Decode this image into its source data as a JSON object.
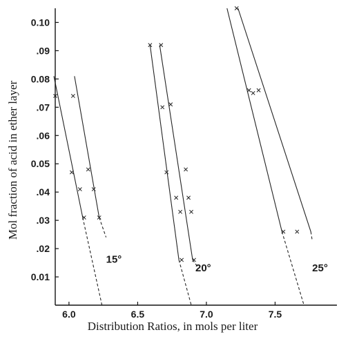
{
  "chart_data": {
    "type": "line",
    "title": "",
    "xlabel": "Distribution Ratios, in mols per liter",
    "ylabel": "Mol fraction of acid in ether layer",
    "xlim": [
      5.9,
      7.95
    ],
    "ylim": [
      0.0,
      0.105
    ],
    "x_ticks": [
      {
        "value": 6.0,
        "label": "6.0"
      },
      {
        "value": 6.5,
        "label": "6.5"
      },
      {
        "value": 7.0,
        "label": "7.0"
      },
      {
        "value": 7.5,
        "label": "7.5"
      }
    ],
    "y_ticks": [
      {
        "value": 0.01,
        "label": "0.01"
      },
      {
        "value": 0.02,
        "label": ".02"
      },
      {
        "value": 0.03,
        "label": ".03"
      },
      {
        "value": 0.04,
        "label": ".04"
      },
      {
        "value": 0.05,
        "label": "0.05"
      },
      {
        "value": 0.06,
        "label": ".06"
      },
      {
        "value": 0.07,
        "label": ".07"
      },
      {
        "value": 0.08,
        "label": "0.08"
      },
      {
        "value": 0.09,
        "label": ".09"
      },
      {
        "value": 0.1,
        "label": "0.10"
      }
    ],
    "grid": false,
    "legend": "none",
    "groups": [
      {
        "label": "15°",
        "label_at": [
          6.27,
          0.015
        ],
        "lines": [
          {
            "solid": [
              [
                5.89,
                0.081
              ],
              [
                6.1,
                0.031
              ]
            ],
            "dashed_to": [
              6.24,
              0.0
            ]
          },
          {
            "solid": [
              [
                6.04,
                0.081
              ],
              [
                6.22,
                0.031
              ]
            ],
            "dashed_to": [
              6.27,
              0.024
            ]
          }
        ],
        "points": [
          [
            5.9,
            0.074
          ],
          [
            6.02,
            0.047
          ],
          [
            6.08,
            0.041
          ],
          [
            6.11,
            0.031
          ],
          [
            6.03,
            0.074
          ],
          [
            6.14,
            0.048
          ],
          [
            6.18,
            0.041
          ],
          [
            6.22,
            0.031
          ]
        ]
      },
      {
        "label": "20°",
        "label_at": [
          6.92,
          0.012
        ],
        "lines": [
          {
            "solid": [
              [
                6.59,
                0.092
              ],
              [
                6.8,
                0.016
              ]
            ],
            "dashed_to": [
              6.89,
              0.0
            ]
          },
          {
            "solid": [
              [
                6.66,
                0.092
              ],
              [
                6.9,
                0.016
              ]
            ],
            "dashed_to": [
              6.93,
              0.014
            ]
          }
        ],
        "points": [
          [
            6.59,
            0.092
          ],
          [
            6.68,
            0.07
          ],
          [
            6.71,
            0.047
          ],
          [
            6.78,
            0.038
          ],
          [
            6.81,
            0.033
          ],
          [
            6.82,
            0.016
          ],
          [
            6.67,
            0.092
          ],
          [
            6.74,
            0.071
          ],
          [
            6.85,
            0.048
          ],
          [
            6.87,
            0.038
          ],
          [
            6.89,
            0.033
          ],
          [
            6.91,
            0.016
          ]
        ]
      },
      {
        "label": "25°",
        "label_at": [
          7.77,
          0.012
        ],
        "lines": [
          {
            "solid": [
              [
                7.15,
                0.105
              ],
              [
                7.55,
                0.026
              ]
            ],
            "dashed_to": [
              7.71,
              0.0
            ]
          },
          {
            "solid": [
              [
                7.23,
                0.105
              ],
              [
                7.76,
                0.026
              ]
            ],
            "dashed_to": [
              7.77,
              0.023
            ]
          }
        ],
        "points": [
          [
            7.22,
            0.105
          ],
          [
            7.31,
            0.076
          ],
          [
            7.34,
            0.075
          ],
          [
            7.56,
            0.026
          ],
          [
            7.38,
            0.076
          ],
          [
            7.66,
            0.026
          ]
        ]
      }
    ]
  }
}
